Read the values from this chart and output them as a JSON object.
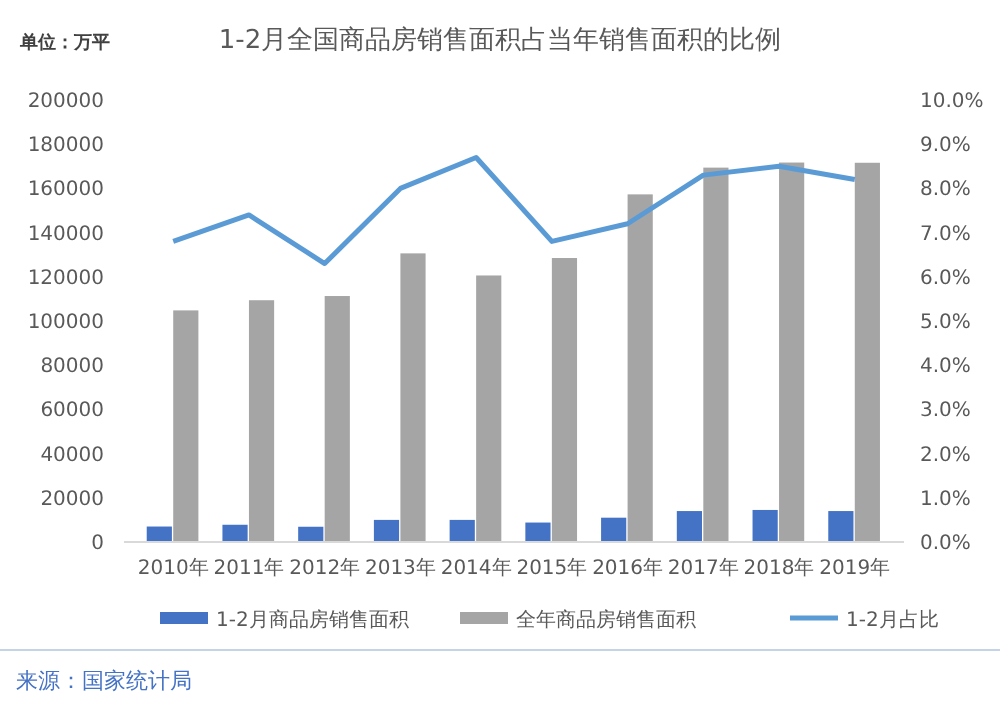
{
  "chart_data": {
    "type": "bar",
    "title": "1-2月全国商品房销售面积占当年销售面积的比例",
    "ylabel": "单位：万平",
    "categories": [
      "2010年",
      "2011年",
      "2012年",
      "2013年",
      "2014年",
      "2015年",
      "2016年",
      "2017年",
      "2018年",
      "2019年"
    ],
    "series": [
      {
        "name": "1-2月商品房销售面积",
        "color": "#4472c4",
        "values": [
          7000,
          7800,
          6900,
          10000,
          10000,
          8800,
          11000,
          14000,
          14500,
          14000
        ]
      },
      {
        "name": "全年商品房销售面积",
        "color": "#a5a5a5",
        "values": [
          104800,
          109400,
          111300,
          130600,
          120600,
          128500,
          157300,
          169400,
          171700,
          171600
        ]
      },
      {
        "name": "1-2月占比",
        "type": "line",
        "axis": "y2",
        "color": "#5b9bd5",
        "values": [
          6.8,
          7.4,
          6.3,
          8.0,
          8.7,
          6.8,
          7.2,
          8.3,
          8.5,
          8.2
        ]
      }
    ],
    "ylim": [
      0,
      200000
    ],
    "yticks": [
      0,
      20000,
      40000,
      60000,
      80000,
      100000,
      120000,
      140000,
      160000,
      180000,
      200000
    ],
    "y2lim": [
      0,
      10
    ],
    "y2ticks": [
      {
        "value": 0,
        "label": "0.0%"
      },
      {
        "value": 1,
        "label": "1.0%"
      },
      {
        "value": 2,
        "label": "2.0%"
      },
      {
        "value": 3,
        "label": "3.0%"
      },
      {
        "value": 4,
        "label": "4.0%"
      },
      {
        "value": 5,
        "label": "5.0%"
      },
      {
        "value": 6,
        "label": "6.0%"
      },
      {
        "value": 7,
        "label": "7.0%"
      },
      {
        "value": 8,
        "label": "8.0%"
      },
      {
        "value": 9,
        "label": "9.0%"
      },
      {
        "value": 10,
        "label": "10.0%"
      }
    ],
    "grid": false,
    "legend": "bottom",
    "marker": "none",
    "line_style": "solid",
    "annotations": [
      "来源：国家统计局"
    ]
  }
}
